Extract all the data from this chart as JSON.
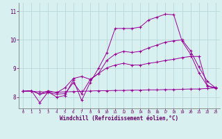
{
  "xlabel": "Windchill (Refroidissement éolien,°C)",
  "bg_color": "#d8f0f0",
  "line_color": "#990099",
  "grid_color": "#b8d8d8",
  "x_ticks": [
    0,
    1,
    2,
    3,
    4,
    5,
    6,
    7,
    8,
    9,
    10,
    11,
    12,
    13,
    14,
    15,
    16,
    17,
    18,
    19,
    20,
    21,
    22,
    23
  ],
  "y_ticks": [
    8,
    9,
    10,
    11
  ],
  "xlim": [
    -0.5,
    23.5
  ],
  "ylim": [
    7.6,
    11.3
  ],
  "series": [
    {
      "x": [
        0,
        1,
        2,
        3,
        4,
        5,
        6,
        7,
        8,
        9,
        10,
        11,
        12,
        13,
        14,
        15,
        16,
        17,
        18,
        19,
        20,
        21,
        22,
        23
      ],
      "y": [
        8.2,
        8.22,
        7.8,
        8.18,
        8.0,
        8.05,
        8.6,
        7.88,
        8.5,
        9.0,
        9.55,
        10.4,
        10.4,
        10.4,
        10.45,
        10.7,
        10.8,
        10.9,
        10.88,
        9.95,
        9.5,
        8.85,
        8.4,
        8.3
      ]
    },
    {
      "x": [
        0,
        1,
        2,
        3,
        4,
        5,
        6,
        7,
        8,
        9,
        10,
        11,
        12,
        13,
        14,
        15,
        16,
        17,
        18,
        19,
        20,
        21,
        22,
        23
      ],
      "y": [
        8.2,
        8.2,
        8.18,
        8.18,
        8.17,
        8.18,
        8.19,
        8.2,
        8.21,
        8.22,
        8.22,
        8.23,
        8.23,
        8.24,
        8.24,
        8.25,
        8.25,
        8.26,
        8.26,
        8.27,
        8.28,
        8.28,
        8.3,
        8.32
      ]
    },
    {
      "x": [
        0,
        1,
        2,
        3,
        4,
        5,
        6,
        7,
        8,
        9,
        10,
        11,
        12,
        13,
        14,
        15,
        16,
        17,
        18,
        19,
        20,
        21,
        22,
        23
      ],
      "y": [
        8.2,
        8.22,
        8.1,
        8.15,
        8.1,
        8.12,
        8.5,
        8.12,
        8.6,
        8.82,
        9.28,
        9.5,
        9.6,
        9.56,
        9.6,
        9.72,
        9.82,
        9.92,
        9.97,
        10.0,
        9.62,
        9.05,
        8.55,
        8.32
      ]
    },
    {
      "x": [
        0,
        1,
        2,
        3,
        4,
        5,
        6,
        7,
        8,
        9,
        10,
        11,
        12,
        13,
        14,
        15,
        16,
        17,
        18,
        19,
        20,
        21,
        22,
        23
      ],
      "y": [
        8.2,
        8.22,
        8.1,
        8.22,
        8.15,
        8.32,
        8.65,
        8.72,
        8.62,
        8.82,
        9.02,
        9.12,
        9.18,
        9.12,
        9.12,
        9.18,
        9.22,
        9.28,
        9.32,
        9.38,
        9.42,
        9.42,
        8.38,
        8.33
      ]
    }
  ]
}
